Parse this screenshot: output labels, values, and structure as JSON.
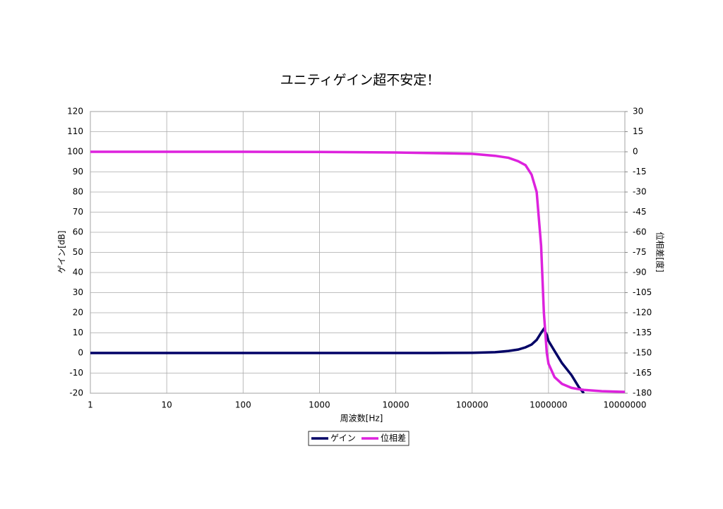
{
  "chart_data": {
    "type": "line",
    "title": "ユニティゲイン超不安定！",
    "x_label": "周波数[Hz]",
    "y_label": "ゲイン[dB]",
    "y2_label": "位相差[度]",
    "x_scale": "log",
    "grid": true,
    "legend": "bottom",
    "xlim": [
      1,
      10000000
    ],
    "xticks": [
      1,
      10,
      100,
      1000,
      10000,
      100000,
      1000000,
      10000000
    ],
    "ylim": [
      -20,
      120
    ],
    "yticks": [
      120,
      110,
      100,
      90,
      80,
      70,
      60,
      50,
      40,
      30,
      20,
      10,
      0,
      -10,
      -20
    ],
    "y2lim": [
      -180,
      30
    ],
    "y2ticks": [
      30,
      15,
      0,
      -15,
      -30,
      -45,
      -60,
      -75,
      -90,
      -105,
      -120,
      -135,
      -150,
      -165,
      -180
    ],
    "x": [
      1,
      10,
      100,
      1000,
      10000,
      30000,
      100000,
      200000,
      300000,
      400000,
      500000,
      600000,
      700000,
      800000,
      870000,
      950000,
      1000000,
      1200000,
      1500000,
      2000000,
      2500000,
      2900000,
      5000000,
      10000000
    ],
    "series": [
      {
        "name": "ゲイン",
        "color": "#000066",
        "axis": "y",
        "values": [
          0,
          0,
          0,
          0,
          0,
          0,
          0.1,
          0.4,
          1,
          1.7,
          2.8,
          4.2,
          6.5,
          10,
          12,
          9,
          6,
          1,
          -5,
          -11,
          -17,
          -20,
          null,
          null
        ]
      },
      {
        "name": "位相差",
        "color": "#dd22dd",
        "axis": "y2",
        "values": [
          0,
          0,
          0,
          -0.1,
          -0.5,
          -1,
          -1.5,
          -3,
          -4.5,
          -7,
          -10,
          -17,
          -30,
          -70,
          -120,
          -150,
          -158,
          -168,
          -173,
          -176,
          -177,
          -177.5,
          -178.5,
          -179
        ]
      }
    ]
  }
}
